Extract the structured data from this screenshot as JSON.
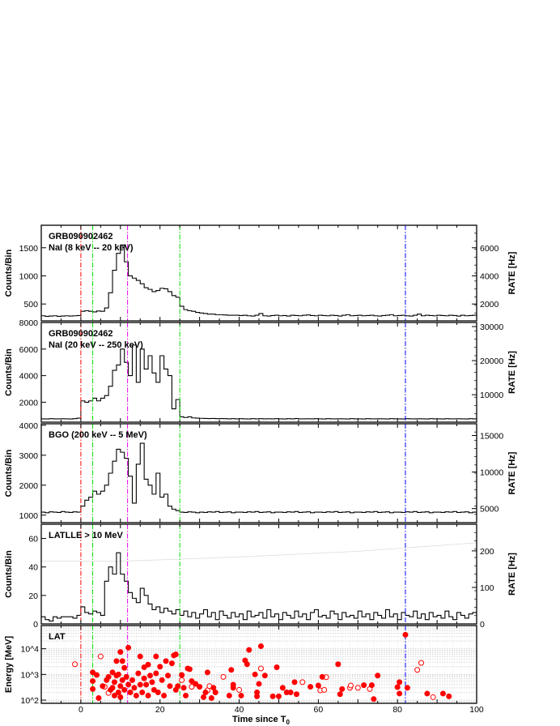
{
  "chart_data": {
    "type": "line",
    "x_label": "Time since T",
    "x_label_sub": "0",
    "xlim": [
      -10,
      100
    ],
    "x_ticks": [
      0,
      20,
      40,
      60,
      80,
      100
    ],
    "markers": [
      {
        "t": 0,
        "color": "#ff0000"
      },
      {
        "t": 3,
        "color": "#00dd00"
      },
      {
        "t": 25,
        "color": "#00dd00"
      },
      {
        "t": 11.8,
        "color": "#ee00ee"
      },
      {
        "t": 82,
        "color": "#0000ff"
      }
    ],
    "panels": [
      {
        "title": [
          "GRB090902462",
          "NaI (8 keV -- 20 keV)"
        ],
        "ylabel": "Counts/Bin",
        "ylabel_right": "RATE [Hz]",
        "ylim": [
          200,
          1900
        ],
        "yticks": [
          500,
          1000,
          1500
        ],
        "rate_ticks": [
          2000,
          4000,
          6000
        ],
        "rate_factor": 4,
        "t0": -10,
        "bin": 1,
        "values": [
          290,
          280,
          285,
          290,
          280,
          285,
          290,
          285,
          290,
          295,
          370,
          380,
          370,
          360,
          375,
          370,
          430,
          700,
          1100,
          1400,
          1550,
          1250,
          1000,
          960,
          920,
          860,
          790,
          760,
          720,
          740,
          780,
          770,
          720,
          650,
          620,
          460,
          400,
          380,
          370,
          350,
          340,
          330,
          320,
          320,
          310,
          310,
          305,
          300,
          300,
          300,
          295,
          300,
          290,
          285,
          300,
          330,
          290,
          285,
          295,
          300,
          290,
          295,
          285,
          300,
          295,
          290,
          300,
          305,
          295,
          290,
          300,
          295,
          290,
          300,
          295,
          285,
          300,
          310,
          290,
          295,
          300,
          290,
          295,
          300,
          290,
          285,
          295,
          300,
          310,
          290,
          295,
          300,
          290,
          285,
          300,
          320,
          290,
          300,
          295,
          290,
          300,
          295,
          290,
          300,
          295,
          285,
          300,
          290,
          295,
          300
        ]
      },
      {
        "title": [
          "GRB090902462",
          "NaI (20 keV -- 250 keV)"
        ],
        "ylabel": "Counts/Bin",
        "ylabel_right": "RATE [Hz]",
        "ylim": [
          500,
          8000
        ],
        "yticks": [
          2000,
          4000,
          6000,
          8000
        ],
        "rate_ticks": [
          10000,
          20000,
          30000
        ],
        "rate_factor": 3.9,
        "t0": -10,
        "bin": 1,
        "values": [
          750,
          740,
          760,
          750,
          745,
          755,
          750,
          740,
          760,
          800,
          2100,
          2000,
          2100,
          2300,
          2100,
          2300,
          2500,
          3200,
          4400,
          4800,
          6000,
          5000,
          4000,
          6300,
          3500,
          6000,
          4500,
          5500,
          4200,
          3500,
          5500,
          4500,
          4000,
          1500,
          2200,
          900,
          850,
          900,
          820,
          800,
          790,
          780,
          770,
          780,
          760,
          770,
          760,
          750,
          760,
          750,
          760,
          750,
          740,
          760,
          750,
          760,
          745,
          755,
          750,
          760,
          750,
          740,
          760,
          750,
          770,
          750,
          745,
          755,
          750,
          760,
          750,
          740,
          760,
          750,
          745,
          755,
          750,
          740,
          760,
          750,
          750,
          740,
          760,
          750,
          745,
          755,
          750,
          740,
          760,
          750,
          750,
          740,
          760,
          750,
          745,
          755,
          750,
          740,
          760,
          750,
          750,
          740,
          760,
          750,
          745,
          755,
          750,
          740,
          760,
          750
        ]
      },
      {
        "title": [
          "BGO (200 keV -- 5 MeV)"
        ],
        "ylabel": "Counts/Bin",
        "ylabel_right": "RATE [Hz]",
        "ylim": [
          750,
          4050
        ],
        "yticks": [
          1000,
          2000,
          3000,
          4000
        ],
        "rate_ticks": [
          5000,
          10000,
          15000
        ],
        "rate_factor": 4.1,
        "t0": -10,
        "bin": 1,
        "values": [
          1100,
          1080,
          1110,
          1100,
          1090,
          1120,
          1100,
          1090,
          1110,
          1100,
          1300,
          1500,
          1600,
          1800,
          1700,
          1800,
          2000,
          2400,
          2800,
          3200,
          3100,
          2900,
          2300,
          1400,
          2700,
          3400,
          2200,
          2000,
          1700,
          2400,
          1600,
          1700,
          1300,
          1200,
          1150,
          1100,
          1090,
          1110,
          1100,
          1080,
          1100,
          1090,
          1110,
          1100,
          1120,
          1090,
          1100,
          1110,
          1080,
          1100,
          1100,
          1090,
          1110,
          1100,
          1120,
          1090,
          1100,
          1110,
          1080,
          1100,
          1100,
          1090,
          1110,
          1100,
          1120,
          1090,
          1100,
          1110,
          1080,
          1100,
          1100,
          1090,
          1110,
          1100,
          1120,
          1090,
          1100,
          1110,
          1080,
          1100,
          1100,
          1090,
          1110,
          1100,
          1120,
          1090,
          1100,
          1110,
          1080,
          1100,
          1100,
          1090,
          1110,
          1100,
          1120,
          1090,
          1100,
          1110,
          1080,
          1100,
          1100,
          1090,
          1110,
          1100,
          1120,
          1090,
          1100,
          1110,
          1080,
          1100
        ]
      },
      {
        "title": [
          "LATLLE > 10 MeV"
        ],
        "ylabel": "Counts/Bin",
        "ylabel_right": "RATE [Hz]",
        "ylim": [
          0,
          70
        ],
        "yticks": [
          0,
          20,
          40,
          60
        ],
        "rate_ticks": [
          0,
          100,
          200
        ],
        "rate_factor": 3.9,
        "background_curve": [
          [
            -10,
            44
          ],
          [
            10,
            44
          ],
          [
            40,
            47
          ],
          [
            70,
            51
          ],
          [
            100,
            57
          ]
        ],
        "t0": -10,
        "bin": 1,
        "values": [
          5,
          3,
          2,
          5,
          4,
          5,
          5,
          5,
          4,
          6,
          12,
          8,
          7,
          9,
          8,
          6,
          30,
          40,
          35,
          50,
          35,
          30,
          22,
          18,
          15,
          25,
          20,
          14,
          10,
          12,
          8,
          11,
          9,
          7,
          10,
          6,
          9,
          5,
          8,
          4,
          7,
          10,
          5,
          8,
          3,
          9,
          6,
          4,
          8,
          5,
          7,
          3,
          9,
          5,
          6,
          8,
          4,
          10,
          5,
          7,
          3,
          8,
          6,
          4,
          9,
          5,
          7,
          3,
          8,
          10,
          5,
          6,
          4,
          9,
          7,
          3,
          8,
          5,
          6,
          4,
          9,
          5,
          7,
          3,
          8,
          6,
          4,
          10,
          5,
          7,
          3,
          8,
          6,
          5,
          9,
          4,
          7,
          3,
          8,
          5,
          6,
          4,
          9,
          5,
          3,
          8,
          6,
          4,
          7,
          8
        ]
      },
      {
        "title": [
          "LAT"
        ],
        "ylabel": "Energy [MeV]",
        "yscale": "log",
        "ylim": [
          75,
          80000
        ],
        "yticks": [
          100,
          1000,
          10000
        ],
        "ytick_labels": [
          "10^2",
          "10^3",
          "10^4"
        ],
        "events": [
          [
            -1.5,
            2500,
            1
          ],
          [
            5,
            5000,
            1
          ],
          [
            6,
            330,
            1
          ],
          [
            7,
            190,
            1
          ],
          [
            25.5,
            600,
            1
          ],
          [
            28,
            330,
            1
          ],
          [
            32,
            240,
            1
          ],
          [
            32.5,
            350,
            1
          ],
          [
            36,
            800,
            1
          ],
          [
            40,
            250,
            1
          ],
          [
            45.5,
            1700,
            1
          ],
          [
            56,
            500,
            1
          ],
          [
            60.5,
            240,
            1
          ],
          [
            61.5,
            250,
            1
          ],
          [
            62,
            780,
            1
          ],
          [
            68,
            300,
            1
          ],
          [
            68.2,
            370,
            1
          ],
          [
            70,
            300,
            1
          ],
          [
            73,
            270,
            1
          ],
          [
            85,
            1500,
            1
          ],
          [
            86,
            2800,
            1
          ],
          [
            89,
            130,
            1
          ],
          [
            3,
            1200,
            0
          ],
          [
            3,
            550,
            0
          ],
          [
            3,
            270,
            0
          ],
          [
            4,
            950,
            0
          ],
          [
            4.5,
            120,
            0
          ],
          [
            5.5,
            350,
            0
          ],
          [
            6.5,
            600,
            0
          ],
          [
            7,
            800,
            0
          ],
          [
            7.5,
            250,
            0
          ],
          [
            8,
            300,
            0
          ],
          [
            8,
            1200,
            0
          ],
          [
            8.5,
            150,
            0
          ],
          [
            8.5,
            500,
            0
          ],
          [
            9,
            900,
            0
          ],
          [
            9,
            3300,
            0
          ],
          [
            9.5,
            200,
            0
          ],
          [
            9.5,
            1000,
            0
          ],
          [
            10,
            7500,
            0
          ],
          [
            10,
            350,
            0
          ],
          [
            10,
            130,
            0
          ],
          [
            10.5,
            3300,
            0
          ],
          [
            10.5,
            600,
            0
          ],
          [
            11,
            250,
            0
          ],
          [
            11,
            1800,
            0
          ],
          [
            11.5,
            800,
            0
          ],
          [
            12,
            11000,
            0
          ],
          [
            12,
            400,
            0
          ],
          [
            12.5,
            200,
            0
          ],
          [
            13,
            600,
            0
          ],
          [
            13.5,
            300,
            0
          ],
          [
            14,
            150,
            0
          ],
          [
            14.5,
            1100,
            0
          ],
          [
            15,
            400,
            0
          ],
          [
            15,
            5000,
            0
          ],
          [
            15.5,
            200,
            0
          ],
          [
            16,
            1900,
            0
          ],
          [
            16,
            700,
            0
          ],
          [
            16.5,
            400,
            0
          ],
          [
            17,
            2400,
            0
          ],
          [
            17,
            150,
            0
          ],
          [
            17.5,
            900,
            0
          ],
          [
            18,
            500,
            0
          ],
          [
            18.5,
            250,
            0
          ],
          [
            19,
            5000,
            0
          ],
          [
            19,
            1100,
            0
          ],
          [
            19.5,
            200,
            0
          ],
          [
            20,
            2000,
            0
          ],
          [
            20.5,
            600,
            0
          ],
          [
            21,
            150,
            0
          ],
          [
            21.5,
            3300,
            0
          ],
          [
            22,
            900,
            0
          ],
          [
            22.5,
            350,
            0
          ],
          [
            23,
            2700,
            0
          ],
          [
            23.5,
            5500,
            0
          ],
          [
            24,
            250,
            0
          ],
          [
            24,
            6000,
            0
          ],
          [
            24.5,
            350,
            0
          ],
          [
            25.5,
            950,
            0
          ],
          [
            26,
            300,
            0
          ],
          [
            26.5,
            150,
            0
          ],
          [
            27,
            1700,
            0
          ],
          [
            27.5,
            1600,
            0
          ],
          [
            28,
            550,
            0
          ],
          [
            29,
            430,
            0
          ],
          [
            30,
            330,
            0
          ],
          [
            31,
            130,
            0
          ],
          [
            31.5,
            200,
            0
          ],
          [
            32,
            1200,
            0
          ],
          [
            33,
            120,
            0
          ],
          [
            33.5,
            300,
            0
          ],
          [
            34,
            200,
            0
          ],
          [
            37.5,
            150,
            0
          ],
          [
            38,
            1500,
            0
          ],
          [
            38.5,
            400,
            0
          ],
          [
            38.5,
            300,
            0
          ],
          [
            40.5,
            150,
            0
          ],
          [
            41.5,
            3500,
            0
          ],
          [
            42,
            2500,
            0
          ],
          [
            42.5,
            9000,
            0
          ],
          [
            44,
            1000,
            0
          ],
          [
            44.5,
            200,
            0
          ],
          [
            44.5,
            140,
            0
          ],
          [
            45,
            430,
            0
          ],
          [
            45.5,
            12500,
            0
          ],
          [
            46.5,
            900,
            0
          ],
          [
            48.5,
            140,
            0
          ],
          [
            49.5,
            1900,
            0
          ],
          [
            50,
            140,
            0
          ],
          [
            51,
            300,
            0
          ],
          [
            52,
            200,
            0
          ],
          [
            53,
            200,
            0
          ],
          [
            54,
            500,
            0
          ],
          [
            54.5,
            170,
            0
          ],
          [
            58,
            330,
            0
          ],
          [
            60,
            370,
            0
          ],
          [
            61,
            800,
            0
          ],
          [
            65,
            2500,
            0
          ],
          [
            65.5,
            170,
            0
          ],
          [
            66,
            270,
            0
          ],
          [
            71.5,
            380,
            0
          ],
          [
            73.5,
            380,
            0
          ],
          [
            74,
            110,
            0
          ],
          [
            75,
            900,
            0
          ],
          [
            80,
            320,
            0
          ],
          [
            80.5,
            180,
            0
          ],
          [
            80.5,
            500,
            0
          ],
          [
            82,
            35000,
            0
          ],
          [
            82.5,
            300,
            0
          ],
          [
            87.5,
            180,
            0
          ],
          [
            91.5,
            180,
            0
          ],
          [
            93,
            140,
            0
          ]
        ]
      }
    ]
  },
  "colors": {
    "open_event": "#ff0000",
    "filled_event": "#ff0000",
    "curve": "#000000",
    "background_curve": "#dddddd"
  }
}
